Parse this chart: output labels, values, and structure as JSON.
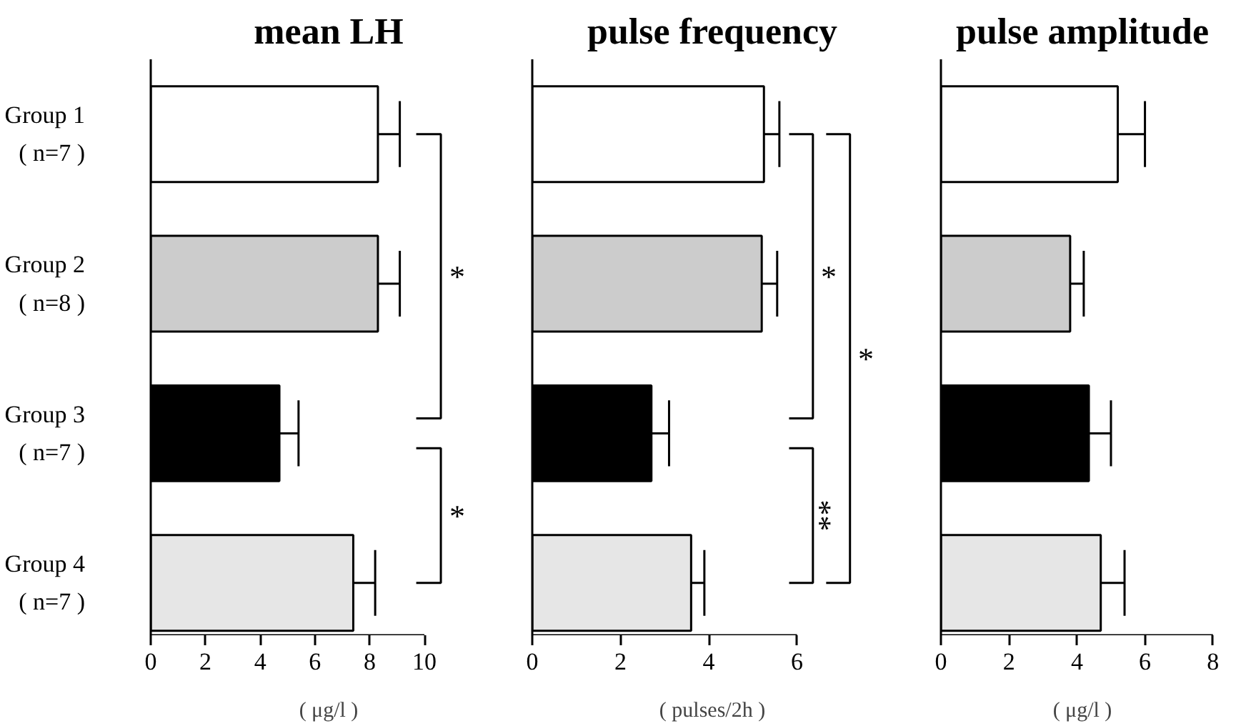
{
  "chart_data": [
    {
      "type": "bar",
      "orientation": "horizontal",
      "title": "mean LH",
      "xlabel": "( μg/l )",
      "categories": [
        "Group 1\n( n=7 )",
        "Group 2\n( n=8 )",
        "Group 3\n( n=7 )",
        "Group 4\n( n=7 )"
      ],
      "values": [
        8.3,
        8.3,
        4.7,
        7.4
      ],
      "errors": [
        0.8,
        0.8,
        0.7,
        0.8
      ],
      "colors": [
        "#ffffff",
        "#cccccc",
        "#000000",
        "#e6e6e6"
      ],
      "xlim": [
        0,
        10
      ],
      "xticks": [
        0,
        2,
        4,
        6,
        8,
        10
      ],
      "annotations": [
        "*",
        "*"
      ]
    },
    {
      "type": "bar",
      "orientation": "horizontal",
      "title": "pulse frequency",
      "xlabel": "( pulses/2h )",
      "categories": [
        null,
        null,
        null,
        null
      ],
      "values": [
        5.25,
        5.2,
        2.7,
        3.6
      ],
      "errors": [
        0.35,
        0.35,
        0.4,
        0.3
      ],
      "colors": [
        "#ffffff",
        "#cccccc",
        "#000000",
        "#e6e6e6"
      ],
      "xlim": [
        0,
        6
      ],
      "xticks": [
        0,
        2,
        4,
        6
      ],
      "annotations": [
        "*",
        "**",
        "*"
      ]
    },
    {
      "type": "bar",
      "orientation": "horizontal",
      "title": "pulse amplitude",
      "xlabel": "( μg/l )",
      "categories": [
        null,
        null,
        null,
        null
      ],
      "values": [
        5.2,
        3.8,
        4.35,
        4.7
      ],
      "errors": [
        0.8,
        0.4,
        0.65,
        0.7
      ],
      "colors": [
        "#ffffff",
        "#cccccc",
        "#000000",
        "#e6e6e6"
      ],
      "xlim": [
        0,
        8
      ],
      "xticks": [
        0,
        2,
        4,
        6,
        8
      ]
    }
  ]
}
